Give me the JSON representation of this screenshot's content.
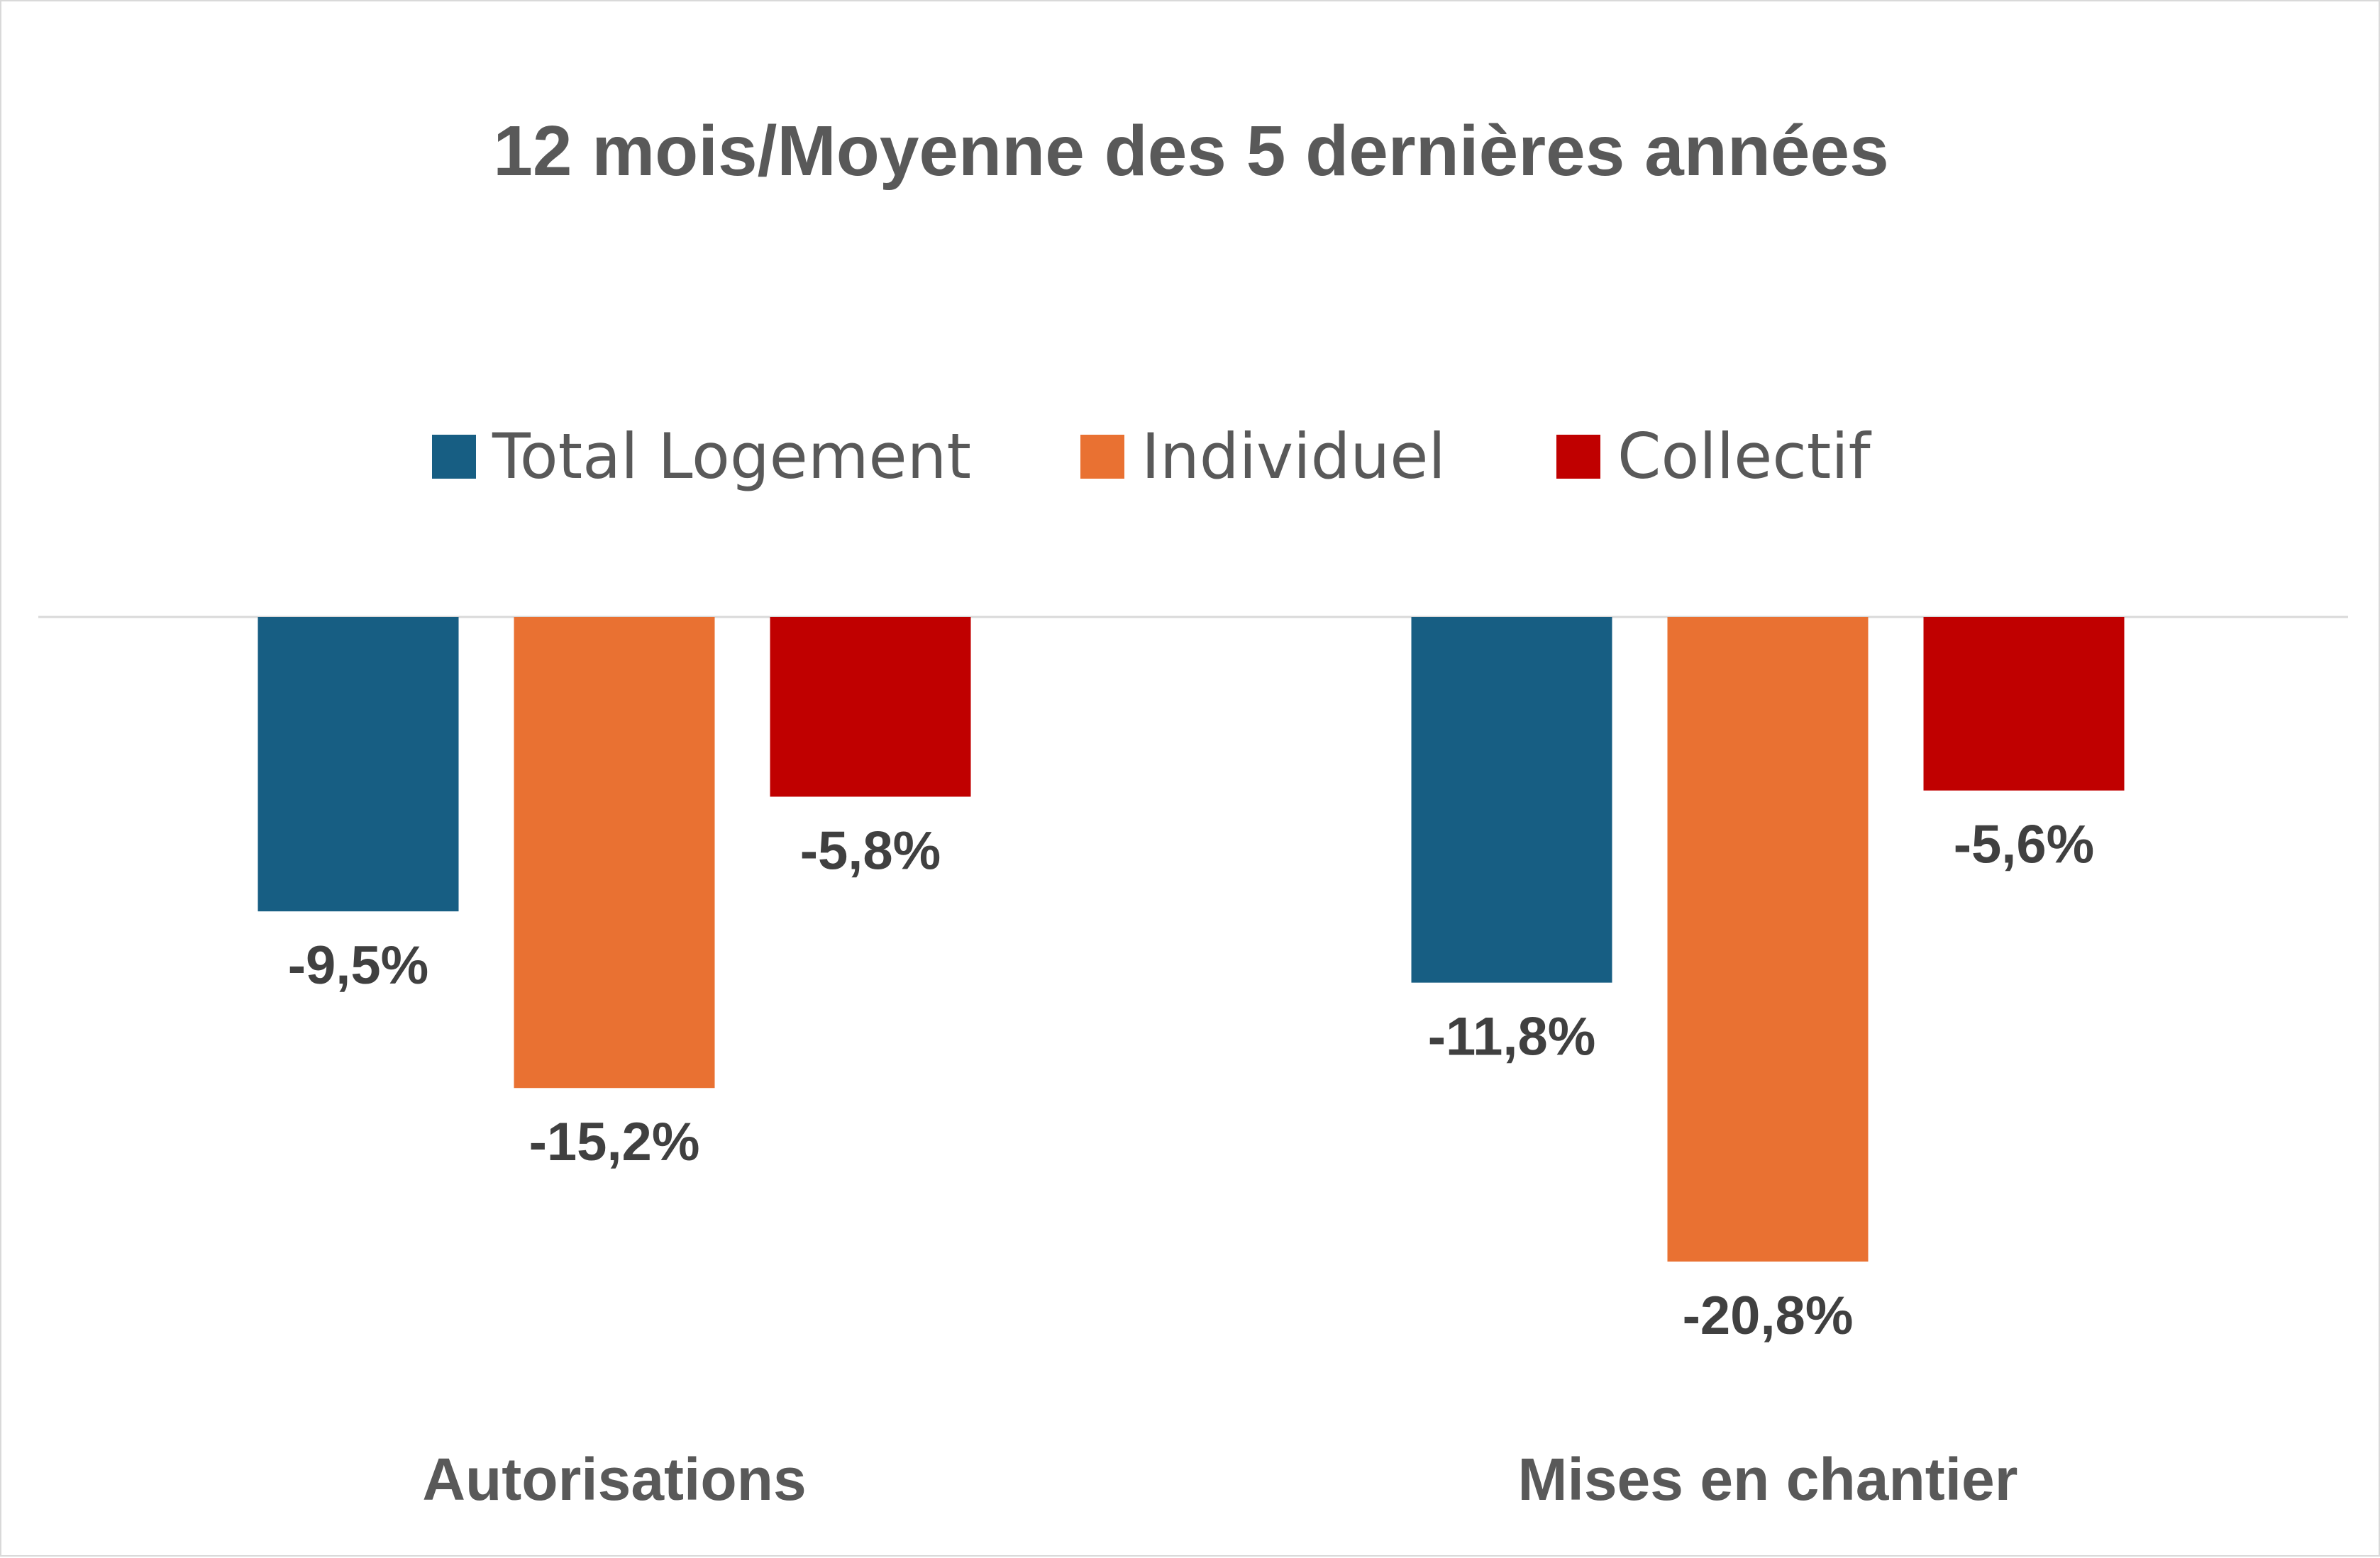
{
  "chart_data": {
    "type": "bar",
    "title": "12 mois/Moyenne des 5 dernières années",
    "categories": [
      "Autorisations",
      "Mises en chantier"
    ],
    "series": [
      {
        "name": "Total Logement",
        "color": "#175e83",
        "values": [
          -9.5,
          -11.8
        ],
        "labels": [
          "-9,5%",
          "-11,8%"
        ]
      },
      {
        "name": "Individuel",
        "color": "#e97132",
        "values": [
          -15.2,
          -20.8
        ],
        "labels": [
          "-15,2%",
          "-20,8%"
        ]
      },
      {
        "name": "Collectif",
        "color": "#c00000",
        "values": [
          -5.8,
          -5.6
        ],
        "labels": [
          "-5,8%",
          "-5,6%"
        ]
      }
    ],
    "ylim": [
      -21.5,
      0
    ],
    "legend": "top",
    "grid": false
  }
}
